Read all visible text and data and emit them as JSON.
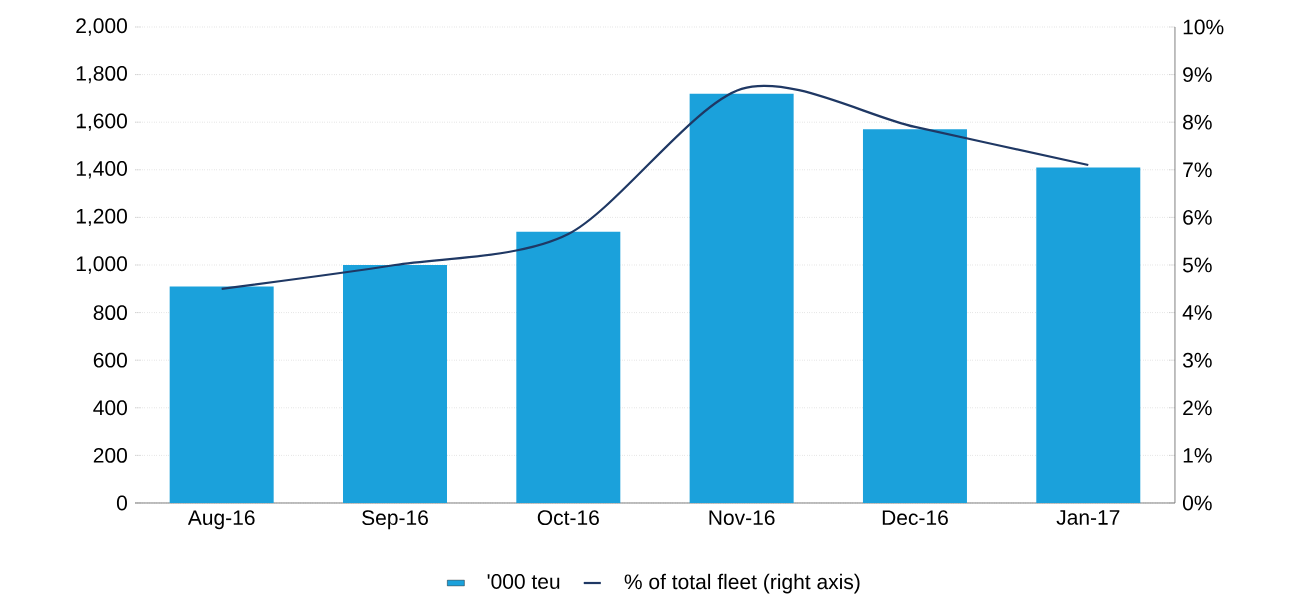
{
  "chart_data": {
    "type": "bar",
    "categories": [
      "Aug-16",
      "Sep-16",
      "Oct-16",
      "Nov-16",
      "Dec-16",
      "Jan-17"
    ],
    "series": [
      {
        "name": "'000 teu",
        "color": "#1ba1db",
        "values": [
          910,
          1000,
          1140,
          1720,
          1570,
          1410
        ]
      },
      {
        "name": "% of total fleet  (right axis)",
        "type": "line",
        "axis": "y2",
        "color": "#1f3864",
        "values": [
          4.5,
          5.0,
          5.65,
          8.7,
          7.9,
          7.1
        ]
      }
    ],
    "ylim": [
      0,
      2000
    ],
    "yticks": [
      0,
      {
        "value": 200,
        "label": "200"
      },
      {
        "value": 400,
        "label": "400"
      },
      {
        "value": 600,
        "label": "600"
      },
      {
        "value": 800,
        "label": "800"
      },
      {
        "value": 1000,
        "label": "1,000"
      },
      {
        "value": 1200,
        "label": "1,200"
      },
      {
        "value": 1400,
        "label": "1,400"
      },
      {
        "value": 1600,
        "label": "1,600"
      },
      {
        "value": 1800,
        "label": "1,800"
      },
      {
        "value": 2000,
        "label": "2,000"
      }
    ],
    "y2lim": [
      0,
      10
    ],
    "y2ticks": [
      {
        "value": 0,
        "label": "0%"
      },
      {
        "value": 1,
        "label": "1%"
      },
      {
        "value": 2,
        "label": "2%"
      },
      {
        "value": 3,
        "label": "3%"
      },
      {
        "value": 4,
        "label": "4%"
      },
      {
        "value": 5,
        "label": "5%"
      },
      {
        "value": 6,
        "label": "6%"
      },
      {
        "value": 7,
        "label": "7%"
      },
      {
        "value": 8,
        "label": "8%"
      },
      {
        "value": 9,
        "label": "9%"
      },
      {
        "value": 10,
        "label": "10%"
      }
    ],
    "grid": "y",
    "legend": "bottom"
  }
}
